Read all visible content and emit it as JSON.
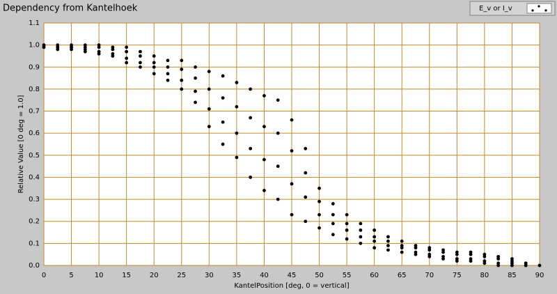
{
  "chart_data": {
    "type": "scatter",
    "title": "Dependency from Kantelhoek",
    "x_label": "KantelPosition [deg, 0 = vertical]",
    "y_label": "Relative Value [0 deg = 1.0]",
    "xlim": [
      0,
      90
    ],
    "ylim": [
      0,
      1.1
    ],
    "xticks": [
      0,
      5,
      10,
      15,
      20,
      25,
      30,
      35,
      40,
      45,
      50,
      55,
      60,
      65,
      70,
      75,
      80,
      85,
      90
    ],
    "yticks": [
      {
        "value": 0,
        "label": "0.0"
      },
      0.1,
      0.2,
      0.3,
      0.4,
      0.5,
      0.6,
      0.7,
      0.8,
      0.9,
      {
        "value": 1,
        "label": "1.0"
      },
      1.1
    ],
    "grid": true,
    "grid_color": "#c08a2a",
    "series": [
      {
        "name": "E_v or I_v",
        "color": "#000000",
        "x": [
          0,
          0,
          0,
          0,
          2.5,
          2.5,
          2.5,
          2.5,
          5,
          5,
          5,
          5,
          7.5,
          7.5,
          7.5,
          7.5,
          10,
          10,
          10,
          10,
          12.5,
          12.5,
          12.5,
          12.5,
          15,
          15,
          15,
          15,
          17.5,
          17.5,
          17.5,
          17.5,
          20,
          20,
          20,
          20,
          22.5,
          22.5,
          22.5,
          22.5,
          25,
          25,
          25,
          25,
          27.5,
          27.5,
          27.5,
          27.5,
          30,
          30,
          30,
          30,
          32.5,
          32.5,
          32.5,
          32.5,
          35,
          35,
          35,
          35,
          37.5,
          37.5,
          37.5,
          37.5,
          40,
          40,
          40,
          40,
          42.5,
          42.5,
          42.5,
          42.5,
          45,
          45,
          45,
          45,
          47.5,
          47.5,
          47.5,
          47.5,
          50,
          50,
          50,
          50,
          52.5,
          52.5,
          52.5,
          52.5,
          55,
          55,
          55,
          55,
          57.5,
          57.5,
          57.5,
          57.5,
          60,
          60,
          60,
          60,
          62.5,
          62.5,
          62.5,
          62.5,
          65,
          65,
          65,
          65,
          67.5,
          67.5,
          67.5,
          67.5,
          70,
          70,
          70,
          70,
          72.5,
          72.5,
          72.5,
          72.5,
          75,
          75,
          75,
          75,
          77.5,
          77.5,
          77.5,
          77.5,
          80,
          80,
          80,
          80,
          82.5,
          82.5,
          82.5,
          82.5,
          85,
          85,
          85,
          85,
          87.5,
          87.5,
          87.5,
          87.5,
          90
        ],
        "values": [
          0.99,
          0.99,
          1.0,
          1.0,
          0.98,
          0.99,
          0.99,
          1.0,
          0.98,
          0.99,
          0.99,
          1.0,
          0.97,
          0.98,
          0.99,
          1.0,
          0.96,
          0.97,
          0.99,
          1.0,
          0.95,
          0.96,
          0.98,
          0.99,
          0.92,
          0.94,
          0.97,
          0.99,
          0.9,
          0.92,
          0.95,
          0.97,
          0.87,
          0.9,
          0.92,
          0.95,
          0.84,
          0.87,
          0.9,
          0.93,
          0.8,
          0.84,
          0.89,
          0.93,
          0.74,
          0.79,
          0.85,
          0.9,
          0.63,
          0.71,
          0.8,
          0.88,
          0.55,
          0.65,
          0.76,
          0.86,
          0.49,
          0.6,
          0.72,
          0.83,
          0.4,
          0.53,
          0.67,
          0.8,
          0.34,
          0.48,
          0.63,
          0.77,
          0.3,
          0.45,
          0.6,
          0.75,
          0.23,
          0.37,
          0.52,
          0.66,
          0.2,
          0.31,
          0.42,
          0.53,
          0.17,
          0.23,
          0.29,
          0.35,
          0.14,
          0.19,
          0.23,
          0.28,
          0.12,
          0.16,
          0.19,
          0.23,
          0.1,
          0.13,
          0.16,
          0.19,
          0.08,
          0.11,
          0.13,
          0.16,
          0.07,
          0.09,
          0.11,
          0.13,
          0.06,
          0.08,
          0.09,
          0.11,
          0.05,
          0.06,
          0.08,
          0.09,
          0.04,
          0.05,
          0.07,
          0.08,
          0.03,
          0.04,
          0.06,
          0.07,
          0.02,
          0.03,
          0.05,
          0.06,
          0.02,
          0.03,
          0.05,
          0.06,
          0.01,
          0.02,
          0.04,
          0.05,
          0,
          0.01,
          0.03,
          0.04,
          0,
          0.01,
          0.02,
          0.03,
          0,
          0,
          0.01,
          0.01,
          0
        ]
      }
    ]
  }
}
